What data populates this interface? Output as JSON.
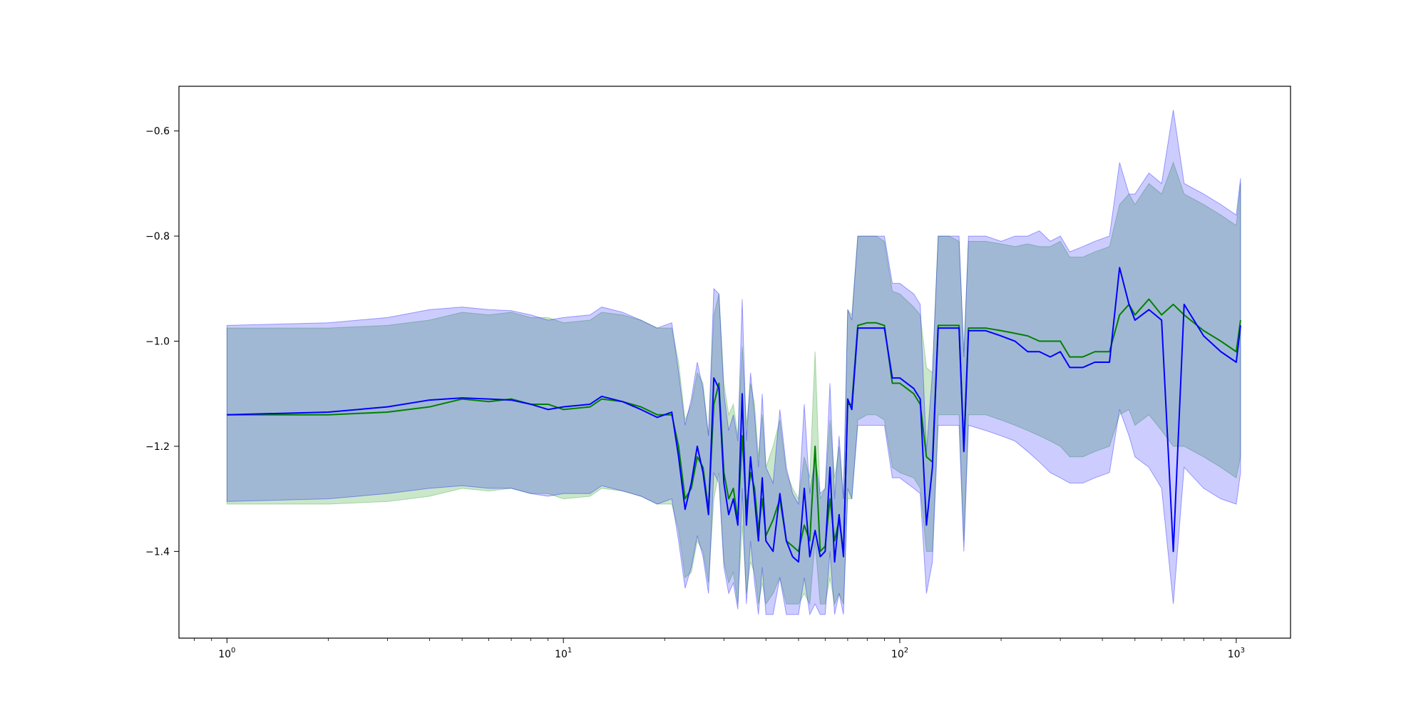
{
  "chart_data": {
    "type": "line",
    "title": "",
    "xlabel": "",
    "ylabel": "",
    "xscale": "log",
    "xlim": [
      0.72,
      1450
    ],
    "ylim": [
      -1.565,
      -0.515
    ],
    "grid": false,
    "legend": "none",
    "x_ticks": [
      {
        "value": 1,
        "base": "10",
        "exp": "0"
      },
      {
        "value": 10,
        "base": "10",
        "exp": "1"
      },
      {
        "value": 100,
        "base": "10",
        "exp": "2"
      },
      {
        "value": 1000,
        "base": "10",
        "exp": "3"
      }
    ],
    "y_ticks": [
      {
        "value": -0.6,
        "label": "−0.6"
      },
      {
        "value": -0.8,
        "label": "−0.8"
      },
      {
        "value": -1.0,
        "label": "−1.0"
      },
      {
        "value": -1.2,
        "label": "−1.2"
      },
      {
        "value": -1.4,
        "label": "−1.4"
      }
    ],
    "series": [
      {
        "color": "#008000",
        "band_color": "#2ca02c",
        "band_opacity": 0.25,
        "x": [
          1,
          2,
          3,
          4,
          5,
          6,
          7,
          8,
          9,
          10,
          12,
          13,
          15,
          17,
          19,
          21,
          22,
          23,
          24,
          25,
          26,
          27,
          28,
          29,
          30,
          31,
          32,
          33,
          34,
          35,
          36,
          37,
          38,
          39,
          40,
          42,
          44,
          46,
          48,
          50,
          52,
          54,
          56,
          58,
          60,
          62,
          64,
          66,
          68,
          70,
          72,
          75,
          80,
          85,
          90,
          95,
          100,
          110,
          115,
          120,
          125,
          130,
          140,
          150,
          155,
          160,
          180,
          200,
          220,
          240,
          260,
          280,
          300,
          320,
          350,
          380,
          420,
          450,
          480,
          500,
          550,
          600,
          650,
          700,
          800,
          900,
          1000,
          1030
        ],
        "mean": [
          -1.14,
          -1.14,
          -1.135,
          -1.125,
          -1.11,
          -1.115,
          -1.11,
          -1.12,
          -1.12,
          -1.13,
          -1.125,
          -1.11,
          -1.115,
          -1.125,
          -1.14,
          -1.14,
          -1.2,
          -1.3,
          -1.28,
          -1.22,
          -1.24,
          -1.32,
          -1.12,
          -1.08,
          -1.25,
          -1.3,
          -1.28,
          -1.34,
          -1.18,
          -1.32,
          -1.25,
          -1.28,
          -1.36,
          -1.3,
          -1.37,
          -1.34,
          -1.3,
          -1.38,
          -1.39,
          -1.4,
          -1.35,
          -1.38,
          -1.2,
          -1.4,
          -1.39,
          -1.3,
          -1.38,
          -1.34,
          -1.4,
          -1.12,
          -1.12,
          -0.97,
          -0.965,
          -0.965,
          -0.97,
          -1.08,
          -1.08,
          -1.1,
          -1.12,
          -1.22,
          -1.23,
          -0.97,
          -0.97,
          -0.97,
          -1.2,
          -0.975,
          -0.975,
          -0.98,
          -0.985,
          -0.99,
          -1.0,
          -1.0,
          -1.0,
          -1.03,
          -1.03,
          -1.02,
          -1.02,
          -0.95,
          -0.93,
          -0.95,
          -0.92,
          -0.95,
          -0.93,
          -0.95,
          -0.98,
          -1.0,
          -1.02,
          -0.96
        ],
        "lower": [
          -1.31,
          -1.31,
          -1.305,
          -1.295,
          -1.28,
          -1.285,
          -1.28,
          -1.29,
          -1.29,
          -1.3,
          -1.295,
          -1.28,
          -1.285,
          -1.295,
          -1.31,
          -1.31,
          -1.36,
          -1.45,
          -1.44,
          -1.38,
          -1.4,
          -1.46,
          -1.3,
          -1.25,
          -1.42,
          -1.46,
          -1.44,
          -1.5,
          -1.35,
          -1.48,
          -1.42,
          -1.44,
          -1.5,
          -1.46,
          -1.5,
          -1.48,
          -1.45,
          -1.5,
          -1.5,
          -1.5,
          -1.48,
          -1.5,
          -1.38,
          -1.5,
          -1.5,
          -1.45,
          -1.5,
          -1.48,
          -1.5,
          -1.3,
          -1.3,
          -1.15,
          -1.14,
          -1.14,
          -1.15,
          -1.24,
          -1.25,
          -1.26,
          -1.28,
          -1.4,
          -1.4,
          -1.14,
          -1.14,
          -1.14,
          -1.38,
          -1.14,
          -1.14,
          -1.15,
          -1.16,
          -1.17,
          -1.18,
          -1.19,
          -1.2,
          -1.22,
          -1.22,
          -1.21,
          -1.2,
          -1.14,
          -1.13,
          -1.16,
          -1.14,
          -1.17,
          -1.2,
          -1.2,
          -1.22,
          -1.24,
          -1.26,
          -1.22
        ],
        "upper": [
          -0.975,
          -0.975,
          -0.97,
          -0.96,
          -0.945,
          -0.95,
          -0.945,
          -0.955,
          -0.955,
          -0.965,
          -0.96,
          -0.945,
          -0.95,
          -0.96,
          -0.975,
          -0.975,
          -1.04,
          -1.15,
          -1.12,
          -1.06,
          -1.08,
          -1.18,
          -0.95,
          -0.91,
          -1.08,
          -1.14,
          -1.12,
          -1.18,
          -1.01,
          -1.16,
          -1.08,
          -1.12,
          -1.22,
          -1.14,
          -1.24,
          -1.2,
          -1.15,
          -1.25,
          -1.28,
          -1.3,
          -1.22,
          -1.26,
          -1.02,
          -1.3,
          -1.28,
          -1.15,
          -1.26,
          -1.2,
          -1.3,
          -0.94,
          -0.95,
          -0.8,
          -0.8,
          -0.8,
          -0.81,
          -0.905,
          -0.91,
          -0.935,
          -0.95,
          -1.05,
          -1.06,
          -0.8,
          -0.8,
          -0.81,
          -1.02,
          -0.81,
          -0.81,
          -0.815,
          -0.82,
          -0.815,
          -0.82,
          -0.82,
          -0.81,
          -0.84,
          -0.84,
          -0.83,
          -0.82,
          -0.74,
          -0.72,
          -0.74,
          -0.7,
          -0.72,
          -0.66,
          -0.72,
          -0.74,
          -0.76,
          -0.78,
          -0.7
        ]
      },
      {
        "color": "#0000ff",
        "band_color": "#0000ff",
        "band_opacity": 0.2,
        "x": [
          1,
          2,
          3,
          4,
          5,
          6,
          7,
          8,
          9,
          10,
          12,
          13,
          15,
          17,
          19,
          21,
          22,
          23,
          24,
          25,
          26,
          27,
          28,
          29,
          30,
          31,
          32,
          33,
          34,
          35,
          36,
          37,
          38,
          39,
          40,
          42,
          44,
          46,
          48,
          50,
          52,
          54,
          56,
          58,
          60,
          62,
          64,
          66,
          68,
          70,
          72,
          75,
          80,
          85,
          90,
          95,
          100,
          110,
          115,
          120,
          125,
          130,
          140,
          150,
          155,
          160,
          180,
          200,
          220,
          240,
          260,
          280,
          300,
          320,
          350,
          380,
          420,
          450,
          480,
          500,
          550,
          600,
          650,
          700,
          800,
          900,
          1000,
          1030
        ],
        "mean": [
          -1.14,
          -1.135,
          -1.125,
          -1.112,
          -1.108,
          -1.11,
          -1.112,
          -1.12,
          -1.13,
          -1.125,
          -1.12,
          -1.105,
          -1.115,
          -1.13,
          -1.145,
          -1.135,
          -1.22,
          -1.32,
          -1.27,
          -1.2,
          -1.25,
          -1.33,
          -1.07,
          -1.09,
          -1.27,
          -1.33,
          -1.3,
          -1.35,
          -1.1,
          -1.35,
          -1.22,
          -1.3,
          -1.38,
          -1.26,
          -1.38,
          -1.4,
          -1.29,
          -1.38,
          -1.41,
          -1.42,
          -1.28,
          -1.41,
          -1.36,
          -1.41,
          -1.4,
          -1.24,
          -1.42,
          -1.33,
          -1.41,
          -1.11,
          -1.13,
          -0.975,
          -0.975,
          -0.975,
          -0.975,
          -1.07,
          -1.07,
          -1.09,
          -1.11,
          -1.35,
          -1.24,
          -0.975,
          -0.975,
          -0.975,
          -1.21,
          -0.98,
          -0.98,
          -0.99,
          -1.0,
          -1.02,
          -1.02,
          -1.03,
          -1.02,
          -1.05,
          -1.05,
          -1.04,
          -1.04,
          -0.86,
          -0.93,
          -0.96,
          -0.94,
          -0.96,
          -1.4,
          -0.93,
          -0.99,
          -1.02,
          -1.04,
          -0.97
        ],
        "lower": [
          -1.305,
          -1.3,
          -1.29,
          -1.28,
          -1.275,
          -1.28,
          -1.28,
          -1.29,
          -1.295,
          -1.29,
          -1.29,
          -1.275,
          -1.285,
          -1.295,
          -1.31,
          -1.3,
          -1.38,
          -1.47,
          -1.43,
          -1.37,
          -1.41,
          -1.48,
          -1.25,
          -1.27,
          -1.43,
          -1.48,
          -1.46,
          -1.51,
          -1.28,
          -1.5,
          -1.38,
          -1.46,
          -1.52,
          -1.43,
          -1.52,
          -1.52,
          -1.45,
          -1.52,
          -1.52,
          -1.52,
          -1.45,
          -1.52,
          -1.5,
          -1.52,
          -1.52,
          -1.4,
          -1.52,
          -1.48,
          -1.52,
          -1.28,
          -1.3,
          -1.16,
          -1.16,
          -1.16,
          -1.16,
          -1.26,
          -1.26,
          -1.28,
          -1.29,
          -1.48,
          -1.42,
          -1.16,
          -1.16,
          -1.16,
          -1.4,
          -1.16,
          -1.17,
          -1.18,
          -1.19,
          -1.21,
          -1.23,
          -1.25,
          -1.26,
          -1.27,
          -1.27,
          -1.26,
          -1.25,
          -1.13,
          -1.18,
          -1.22,
          -1.24,
          -1.28,
          -1.5,
          -1.24,
          -1.28,
          -1.3,
          -1.31,
          -1.25
        ],
        "upper": [
          -0.97,
          -0.965,
          -0.955,
          -0.94,
          -0.935,
          -0.94,
          -0.942,
          -0.95,
          -0.96,
          -0.955,
          -0.95,
          -0.935,
          -0.945,
          -0.96,
          -0.975,
          -0.965,
          -1.06,
          -1.16,
          -1.11,
          -1.04,
          -1.09,
          -1.18,
          -0.9,
          -0.91,
          -1.1,
          -1.17,
          -1.14,
          -1.19,
          -0.92,
          -1.19,
          -1.06,
          -1.14,
          -1.24,
          -1.1,
          -1.24,
          -1.27,
          -1.13,
          -1.24,
          -1.29,
          -1.31,
          -1.12,
          -1.29,
          -1.22,
          -1.29,
          -1.28,
          -1.08,
          -1.3,
          -1.18,
          -1.3,
          -0.94,
          -0.96,
          -0.8,
          -0.8,
          -0.8,
          -0.8,
          -0.89,
          -0.89,
          -0.91,
          -0.93,
          -1.21,
          -1.06,
          -0.8,
          -0.8,
          -0.8,
          -1.03,
          -0.8,
          -0.8,
          -0.81,
          -0.8,
          -0.8,
          -0.79,
          -0.81,
          -0.8,
          -0.83,
          -0.82,
          -0.81,
          -0.8,
          -0.66,
          -0.72,
          -0.72,
          -0.68,
          -0.7,
          -0.56,
          -0.7,
          -0.72,
          -0.74,
          -0.76,
          -0.69
        ]
      }
    ]
  }
}
